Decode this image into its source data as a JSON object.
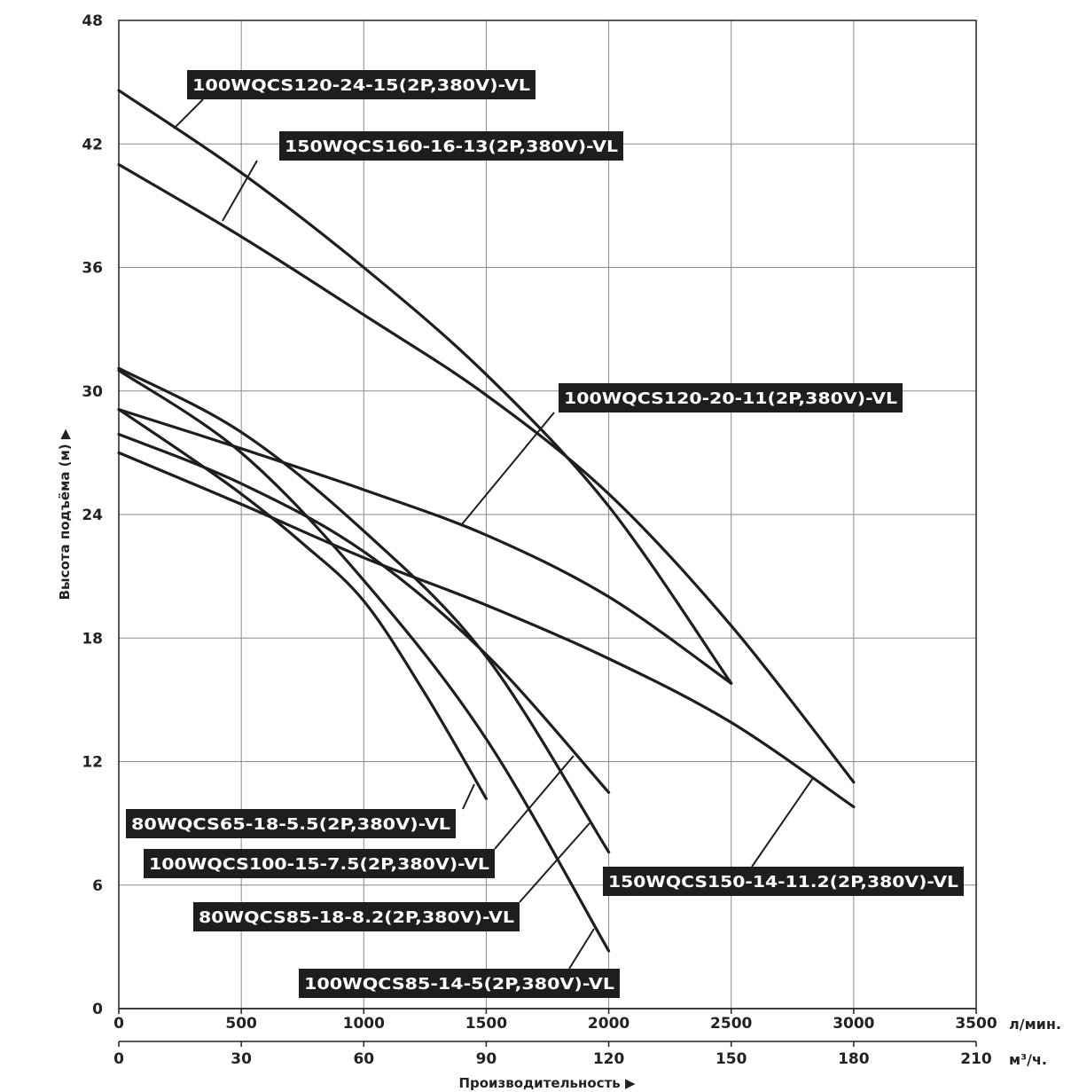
{
  "chart_data": {
    "type": "line",
    "title": "",
    "ylabel": "Высота подъёма (м) ▶",
    "xlabel": "Производительность ▶",
    "x_primary_unit": "л/мин.",
    "x_secondary_unit": "м³/ч.",
    "xlim": [
      0,
      3500
    ],
    "ylim": [
      0,
      48
    ],
    "x_ticks": [
      0,
      500,
      1000,
      1500,
      2000,
      2500,
      3000,
      3500
    ],
    "x_secondary_ticks": [
      0,
      30,
      60,
      90,
      120,
      150,
      180,
      210
    ],
    "y_ticks": [
      0,
      6,
      12,
      18,
      24,
      30,
      36,
      42,
      48
    ],
    "grid": true,
    "colors": {
      "line": "#1e1e1e",
      "label_bg": "#1e1e1e",
      "label_text": "#ffffff",
      "grid": "#8a8a8a"
    },
    "series": [
      {
        "name": "100WQCS120-24-15(2P,380V)-VL",
        "points": [
          [
            0,
            44.6
          ],
          [
            500,
            40.6
          ],
          [
            1000,
            36.0
          ],
          [
            1500,
            30.8
          ],
          [
            2000,
            24.4
          ],
          [
            2500,
            15.8
          ]
        ]
      },
      {
        "name": "150WQCS160-16-13(2P,380V)-VL",
        "points": [
          [
            0,
            41.0
          ],
          [
            500,
            37.5
          ],
          [
            1000,
            33.7
          ],
          [
            1500,
            29.8
          ],
          [
            2000,
            25.0
          ],
          [
            2500,
            18.6
          ],
          [
            3000,
            11.0
          ]
        ]
      },
      {
        "name": "100WQCS120-20-11(2P,380V)-VL",
        "points": [
          [
            0,
            29.1
          ],
          [
            500,
            27.2
          ],
          [
            1000,
            25.2
          ],
          [
            1500,
            23.0
          ],
          [
            2000,
            20.0
          ],
          [
            2500,
            15.8
          ]
        ]
      },
      {
        "name": "150WQCS150-14-11.2(2P,380V)-VL",
        "points": [
          [
            0,
            27.0
          ],
          [
            500,
            24.5
          ],
          [
            1000,
            21.9
          ],
          [
            1500,
            19.6
          ],
          [
            2000,
            17.0
          ],
          [
            2500,
            13.9
          ],
          [
            3000,
            9.8
          ]
        ]
      },
      {
        "name": "80WQCS65-18-5.5(2P,380V)-VL",
        "points": [
          [
            0,
            29.1
          ],
          [
            250,
            27.1
          ],
          [
            500,
            25.0
          ],
          [
            750,
            22.6
          ],
          [
            1000,
            19.8
          ],
          [
            1250,
            15.3
          ],
          [
            1500,
            10.2
          ]
        ]
      },
      {
        "name": "100WQCS100-15-7.5(2P,380V)-VL",
        "points": [
          [
            0,
            27.9
          ],
          [
            500,
            25.5
          ],
          [
            1000,
            22.2
          ],
          [
            1500,
            17.2
          ],
          [
            2000,
            10.5
          ]
        ]
      },
      {
        "name": "80WQCS85-18-8.2(2P,380V)-VL",
        "points": [
          [
            0,
            31.1
          ],
          [
            500,
            28.0
          ],
          [
            1000,
            23.2
          ],
          [
            1500,
            17.1
          ],
          [
            2000,
            7.6
          ]
        ]
      },
      {
        "name": "100WQCS85-14-5(2P,380V)-VL",
        "points": [
          [
            0,
            31.0
          ],
          [
            500,
            27.0
          ],
          [
            1000,
            20.8
          ],
          [
            1500,
            13.1
          ],
          [
            2000,
            2.8
          ]
        ]
      }
    ]
  }
}
